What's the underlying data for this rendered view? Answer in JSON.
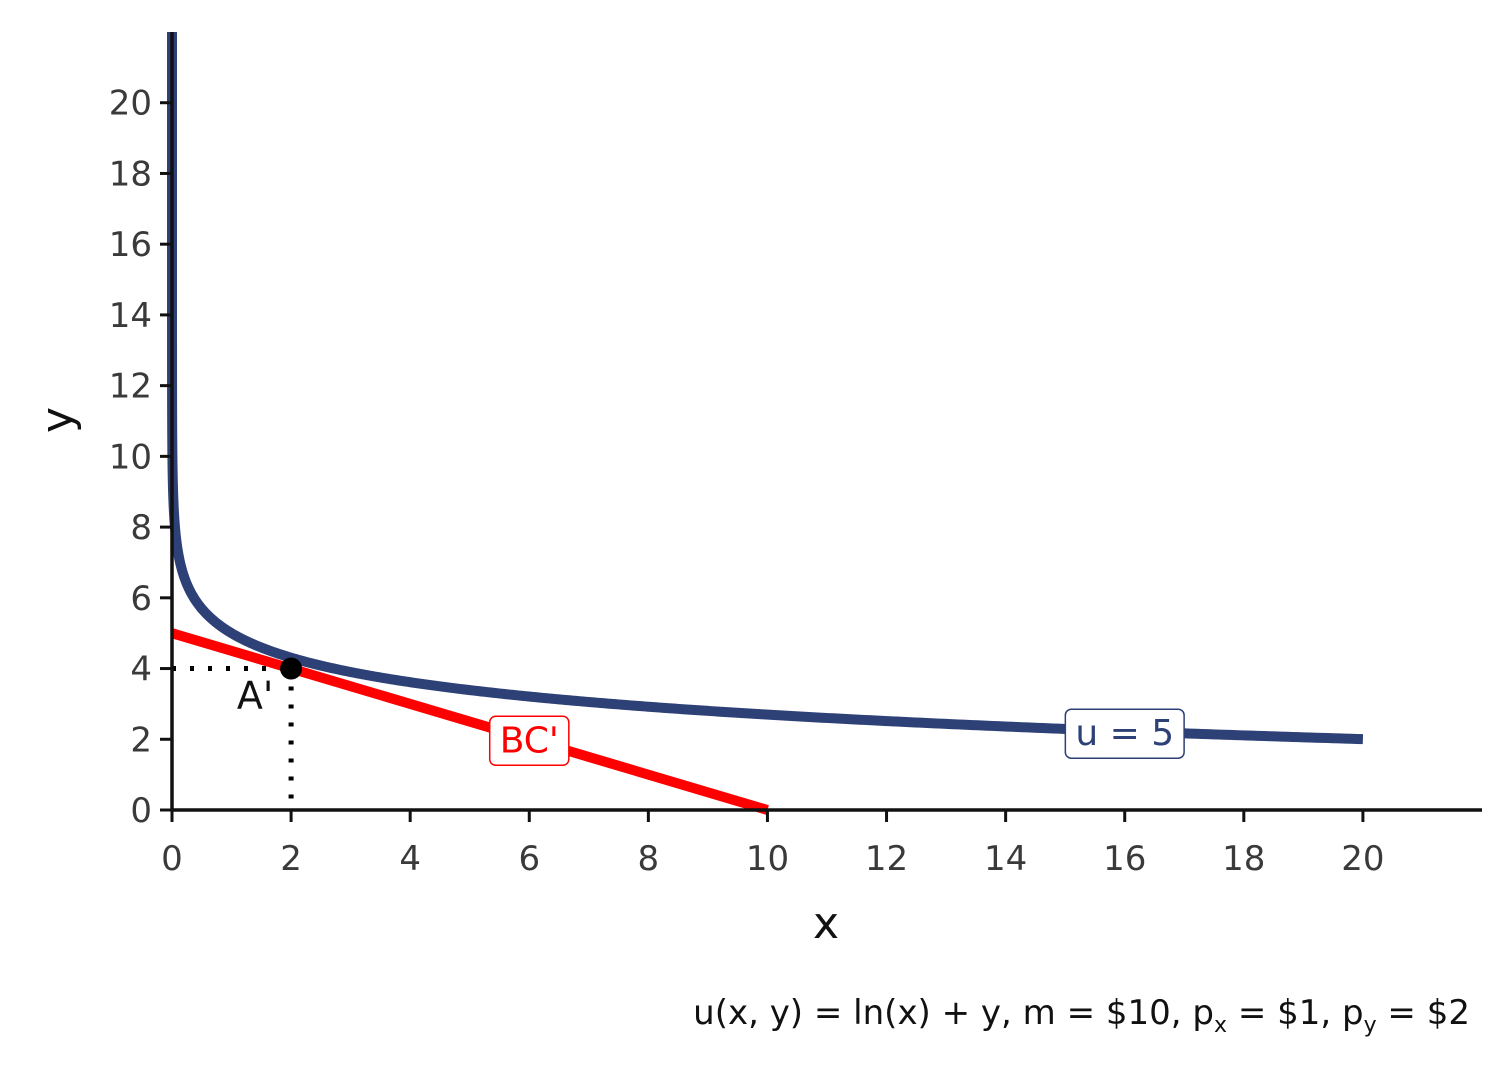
{
  "chart_data": {
    "type": "line",
    "xlabel": "x",
    "ylabel": "y",
    "xlim": [
      0,
      22
    ],
    "ylim": [
      0,
      22
    ],
    "x_ticks": [
      0,
      2,
      4,
      6,
      8,
      10,
      12,
      14,
      16,
      18,
      20
    ],
    "y_ticks": [
      0,
      2,
      4,
      6,
      8,
      10,
      12,
      14,
      16,
      18,
      20
    ],
    "grid": false,
    "colors": {
      "indifference": "#2e4177",
      "budget": "#ff0000",
      "point": "#000000"
    },
    "series": [
      {
        "name": "u = 5",
        "kind": "indifference_curve",
        "equation": "y = 5 - ln(x)",
        "x_range": [
          0.01,
          20
        ]
      },
      {
        "name": "BC'",
        "kind": "budget_constraint",
        "x": [
          0,
          10
        ],
        "y": [
          5,
          0
        ]
      }
    ],
    "points": [
      {
        "label": "A'",
        "x": 2,
        "y": 4
      }
    ],
    "labels": [
      {
        "text": "BC'",
        "x": 6,
        "y": 2
      },
      {
        "text": "u = 5",
        "x": 16,
        "y": 2.2
      }
    ],
    "caption": {
      "prefix": "u(x, y) = ln(x) + y, m = $10, p",
      "px_sub": "x",
      "middle": " = $1, p",
      "py_sub": "y",
      "suffix": " = $2"
    }
  }
}
